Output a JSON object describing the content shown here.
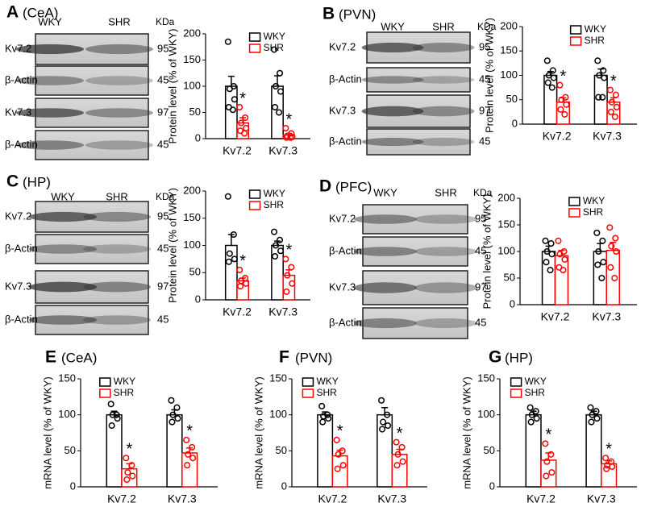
{
  "chart_data": [
    {
      "type": "bar",
      "panel": "A",
      "title": "(CeA)",
      "ylabel": "Protein level (% of WKY)",
      "categories": [
        "Kv7.2",
        "Kv7.3"
      ],
      "ylim": [
        0,
        200
      ],
      "yticks": [
        0,
        50,
        100,
        150,
        200
      ],
      "series": [
        {
          "name": "WKY",
          "color": "#000000",
          "values": [
            100,
            100
          ],
          "errors": [
            19,
            20
          ],
          "points": [
            [
              185,
              100,
              95,
              75,
              60,
              55
            ],
            [
              170,
              125,
              100,
              90,
              60,
              50
            ]
          ]
        },
        {
          "name": "SHR",
          "color": "#ff0000",
          "values": [
            30,
            7
          ],
          "errors": [
            10,
            3
          ],
          "points": [
            [
              60,
              40,
              30,
              20,
              15,
              10
            ],
            [
              20,
              10,
              5,
              3,
              2,
              2
            ]
          ],
          "annotations": [
            "*",
            "*"
          ]
        }
      ]
    },
    {
      "type": "bar",
      "panel": "B",
      "title": "(PVN)",
      "ylabel": "Protein level (% of WKY)",
      "categories": [
        "Kv7.2",
        "Kv7.3"
      ],
      "ylim": [
        0,
        200
      ],
      "yticks": [
        0,
        50,
        100,
        150,
        200
      ],
      "series": [
        {
          "name": "WKY",
          "color": "#000000",
          "values": [
            100,
            100
          ],
          "errors": [
            8,
            13
          ],
          "points": [
            [
              130,
              110,
              100,
              95,
              85,
              75
            ],
            [
              130,
              110,
              100,
              95,
              55,
              55
            ]
          ]
        },
        {
          "name": "SHR",
          "color": "#ff0000",
          "values": [
            45,
            45
          ],
          "errors": [
            9,
            9
          ],
          "points": [
            [
              80,
              55,
              50,
              40,
              30,
              20
            ],
            [
              70,
              60,
              45,
              35,
              25,
              15
            ]
          ],
          "annotations": [
            "*",
            "*"
          ]
        }
      ]
    },
    {
      "type": "bar",
      "panel": "C",
      "title": "(HP)",
      "ylabel": "Protein level (% of WKY)",
      "categories": [
        "Kv7.2",
        "Kv7.3"
      ],
      "ylim": [
        0,
        200
      ],
      "yticks": [
        0,
        50,
        100,
        150,
        200
      ],
      "series": [
        {
          "name": "WKY",
          "color": "#000000",
          "values": [
            100,
            100
          ],
          "errors": [
            20,
            8
          ],
          "points": [
            [
              190,
              120,
              85,
              75,
              70
            ],
            [
              125,
              110,
              100,
              90,
              80
            ]
          ]
        },
        {
          "name": "SHR",
          "color": "#ff0000",
          "values": [
            35,
            45
          ],
          "errors": [
            5,
            10
          ],
          "points": [
            [
              55,
              40,
              35,
              30,
              25
            ],
            [
              75,
              60,
              45,
              30,
              15
            ]
          ],
          "annotations": [
            "*",
            "*"
          ]
        }
      ]
    },
    {
      "type": "bar",
      "panel": "D",
      "title": "(PFC)",
      "ylabel": "Protein level (% of WKY)",
      "categories": [
        "Kv7.2",
        "Kv7.3"
      ],
      "ylim": [
        0,
        200
      ],
      "yticks": [
        0,
        50,
        100,
        150,
        200
      ],
      "series": [
        {
          "name": "WKY",
          "color": "#000000",
          "values": [
            100,
            100
          ],
          "errors": [
            10,
            15
          ],
          "points": [
            [
              120,
              115,
              100,
              95,
              80,
              65
            ],
            [
              135,
              120,
              100,
              80,
              75,
              50
            ]
          ]
        },
        {
          "name": "SHR",
          "color": "#ff0000",
          "values": [
            92,
            102
          ],
          "errors": [
            10,
            15
          ],
          "points": [
            [
              120,
              100,
              95,
              85,
              70,
              65
            ],
            [
              145,
              125,
              110,
              100,
              70,
              50
            ]
          ]
        }
      ]
    },
    {
      "type": "bar",
      "panel": "E",
      "title": "(CeA)",
      "ylabel": "mRNA level (% of WKY)",
      "categories": [
        "Kv7.2",
        "Kv7.3"
      ],
      "ylim": [
        0,
        150
      ],
      "yticks": [
        0,
        50,
        100,
        150
      ],
      "series": [
        {
          "name": "WKY",
          "color": "#000000",
          "values": [
            100,
            100
          ],
          "errors": [
            5,
            7
          ],
          "points": [
            [
              115,
              100,
              100,
              95,
              85
            ],
            [
              120,
              110,
              100,
              95,
              90
            ]
          ]
        },
        {
          "name": "SHR",
          "color": "#ff0000",
          "values": [
            25,
            47
          ],
          "errors": [
            7,
            7
          ],
          "points": [
            [
              40,
              30,
              20,
              15,
              10
            ],
            [
              65,
              55,
              45,
              40,
              30
            ]
          ],
          "annotations": [
            "*",
            "*"
          ]
        }
      ]
    },
    {
      "type": "bar",
      "panel": "F",
      "title": "(PVN)",
      "ylabel": "mRNA level (% of WKY)",
      "categories": [
        "Kv7.2",
        "Kv7.3"
      ],
      "ylim": [
        0,
        150
      ],
      "yticks": [
        0,
        50,
        100,
        150
      ],
      "series": [
        {
          "name": "WKY",
          "color": "#000000",
          "values": [
            100,
            100
          ],
          "errors": [
            4,
            10
          ],
          "points": [
            [
              112,
              100,
              98,
              95,
              90
            ],
            [
              120,
              100,
              90,
              85,
              80
            ]
          ]
        },
        {
          "name": "SHR",
          "color": "#ff0000",
          "values": [
            43,
            45
          ],
          "errors": [
            8,
            7
          ],
          "points": [
            [
              65,
              50,
              45,
              30,
              25
            ],
            [
              62,
              55,
              45,
              35,
              30
            ]
          ],
          "annotations": [
            "*",
            "*"
          ]
        }
      ]
    },
    {
      "type": "bar",
      "panel": "G",
      "title": "(HP)",
      "ylabel": "mRNA level (% of WKY)",
      "categories": [
        "Kv7.2",
        "Kv7.3"
      ],
      "ylim": [
        0,
        150
      ],
      "yticks": [
        0,
        50,
        100,
        150
      ],
      "series": [
        {
          "name": "WKY",
          "color": "#000000",
          "values": [
            100,
            100
          ],
          "errors": [
            5,
            5
          ],
          "points": [
            [
              110,
              105,
              100,
              95,
              90
            ],
            [
              110,
              105,
              100,
              95,
              90
            ]
          ]
        },
        {
          "name": "SHR",
          "color": "#ff0000",
          "values": [
            37,
            32
          ],
          "errors": [
            10,
            4
          ],
          "points": [
            [
              60,
              45,
              35,
              20,
              15
            ],
            [
              40,
              35,
              30,
              28,
              25
            ]
          ],
          "annotations": [
            "*",
            "*"
          ]
        }
      ]
    }
  ],
  "blots": [
    {
      "columns": [
        "WKY",
        "SHR"
      ],
      "unit": "KDa",
      "rows": [
        {
          "label": "Kv7.2",
          "kda": 95
        },
        {
          "label": "β-Actin",
          "kda": 45
        },
        {
          "label": "Kv7.3",
          "kda": 97
        },
        {
          "label": "β-Actin",
          "kda": 45
        }
      ]
    },
    {
      "columns": [
        "WKY",
        "SHR"
      ],
      "unit": "KDa",
      "rows": [
        {
          "label": "Kv7.2",
          "kda": 95
        },
        {
          "label": "β-Actin",
          "kda": 45
        },
        {
          "label": "Kv7.3",
          "kda": 97
        },
        {
          "label": "β-Actin",
          "kda": 45
        }
      ]
    },
    {
      "columns": [
        "WKY",
        "SHR"
      ],
      "unit": "KDa",
      "rows": [
        {
          "label": "Kv7.2",
          "kda": 95
        },
        {
          "label": "β-Actin",
          "kda": 45
        },
        {
          "label": "Kv7.3",
          "kda": 97
        },
        {
          "label": "β-Actin",
          "kda": 45
        }
      ]
    },
    {
      "columns": [
        "WKY",
        "SHR"
      ],
      "unit": "KDa",
      "rows": [
        {
          "label": "Kv7.2",
          "kda": 95
        },
        {
          "label": "β-Actin",
          "kda": 45
        },
        {
          "label": "Kv7.3",
          "kda": 97
        },
        {
          "label": "β-Actin",
          "kda": 45
        }
      ]
    }
  ]
}
